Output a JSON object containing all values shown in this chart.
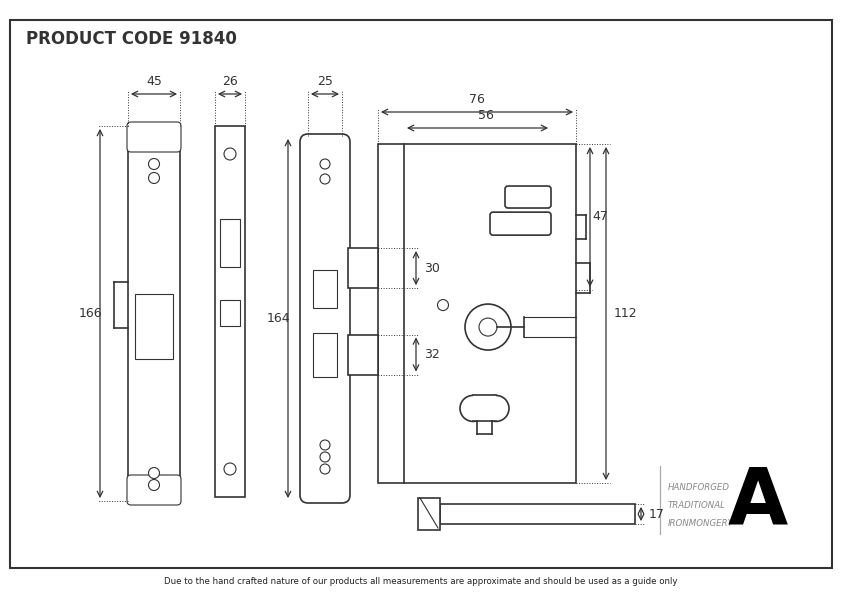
{
  "title": "PRODUCT CODE 91840",
  "bg_color": "#ffffff",
  "line_color": "#333333",
  "footer_text": "Due to the hand crafted nature of our products all measurements are approximate and should be used as a guide only",
  "brand_text": [
    "HANDFORGED",
    "TRADITIONAL",
    "IRONMONGERY"
  ],
  "dims": {
    "fp_width": "45",
    "bp_width": "26",
    "cfp_width": "25",
    "case_depth": "76",
    "case_depth_inner": "56",
    "height_fp": "166",
    "height_cfp": "164",
    "bolt_upper": "30",
    "bolt_lower": "32",
    "side1": "47",
    "side2": "112",
    "spindle": "17"
  }
}
